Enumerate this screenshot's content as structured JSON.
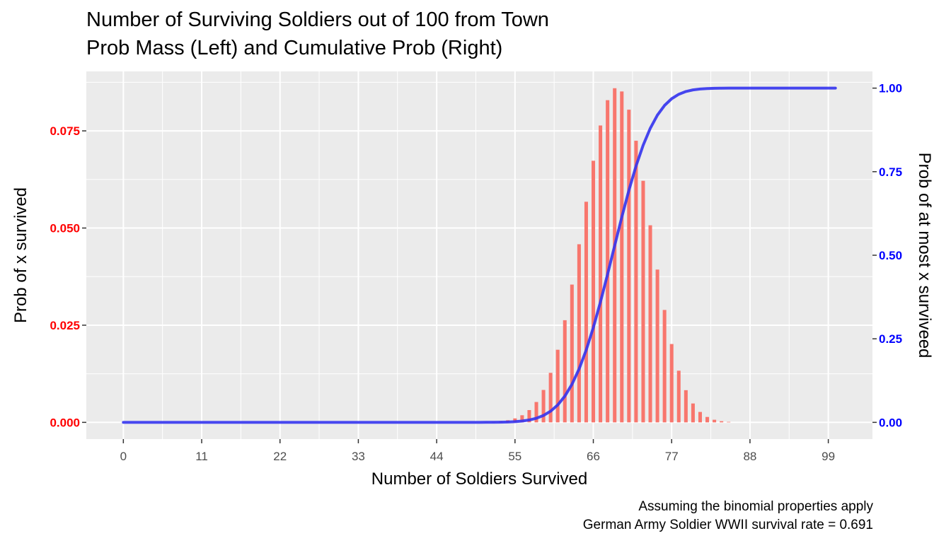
{
  "chart_data": {
    "type": "bar",
    "title": "Number of Surviving Soldiers out of 100 from Town",
    "subtitle": "Prob Mass (Left) and Cumulative Prob (Right)",
    "xlabel": "Number of Soldiers Survived",
    "ylabel_left": "Prob of x survived",
    "ylabel_right": "Prob of at most x surviveed",
    "caption_line1": "Assuming the binomial properties apply",
    "caption_line2": "German Army Soldier WWII survival rate = 0.691",
    "x_ticks": [
      "0",
      "11",
      "22",
      "33",
      "44",
      "55",
      "66",
      "77",
      "88",
      "99"
    ],
    "y_left_ticks": [
      "0.000",
      "0.025",
      "0.050",
      "0.075"
    ],
    "y_right_ticks": [
      "0.00",
      "0.25",
      "0.50",
      "0.75",
      "1.00"
    ],
    "xlim": [
      -5.2,
      105.2
    ],
    "ylim_left": [
      -0.0043,
      0.0903
    ],
    "ylim_right": [
      -0.05,
      1.05
    ],
    "n": 100,
    "p": 0.691,
    "x_range": [
      0,
      100
    ],
    "pmf_series": {
      "name": "Prob Mass",
      "color": "#f8766d"
    },
    "cdf_series": {
      "name": "Cumulative Prob",
      "color": "#3333ee"
    },
    "grid": true,
    "legend": "none"
  }
}
